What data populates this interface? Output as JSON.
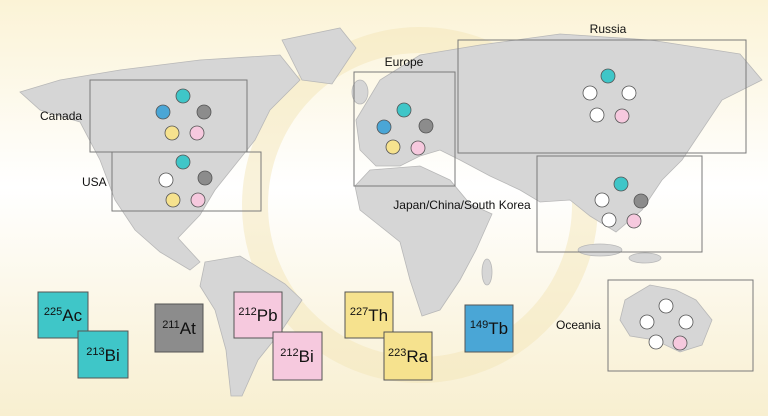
{
  "regions": [
    {
      "label": "Canada"
    },
    {
      "label": "USA"
    },
    {
      "label": "Europe"
    },
    {
      "label": "Russia"
    },
    {
      "label": "Japan/China/South Korea"
    },
    {
      "label": "Oceania"
    }
  ],
  "isotopes": [
    {
      "mass": 225,
      "symbol": "Ac"
    },
    {
      "mass": 213,
      "symbol": "Bi"
    },
    {
      "mass": 211,
      "symbol": "At"
    },
    {
      "mass": 212,
      "symbol": "Pb"
    },
    {
      "mass": 212,
      "symbol": "Bi"
    },
    {
      "mass": 227,
      "symbol": "Th"
    },
    {
      "mass": 223,
      "symbol": "Ra"
    },
    {
      "mass": 149,
      "symbol": "Tb"
    }
  ]
}
